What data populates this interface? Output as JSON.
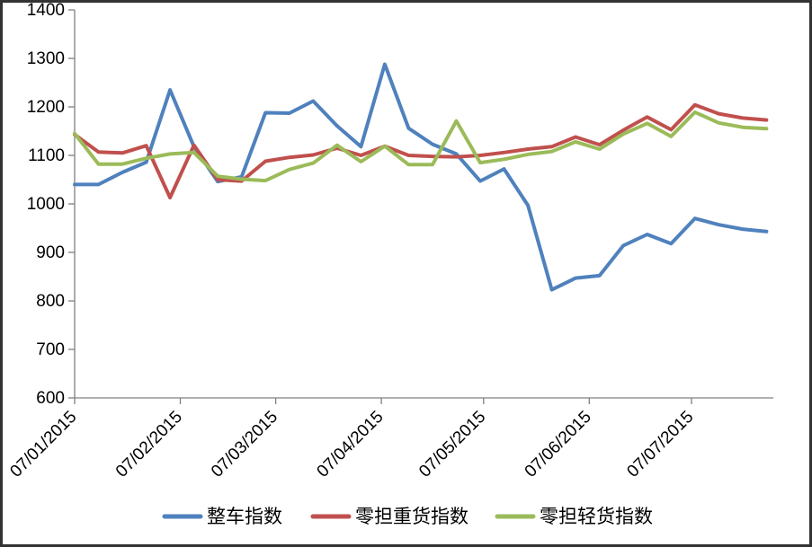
{
  "chart_data": {
    "type": "line",
    "title": "",
    "grid": false,
    "legend_position": "bottom",
    "colors": {
      "axis": "#808080",
      "text": "#000000",
      "background": "#ffffff"
    },
    "y_axis": {
      "min": 600,
      "max": 1400,
      "step": 100,
      "tick_labels": [
        "600",
        "700",
        "800",
        "900",
        "1000",
        "1100",
        "1200",
        "1300",
        "1400"
      ]
    },
    "x_axis": {
      "tick_labels": [
        "07/01/2015",
        "07/02/2015",
        "07/03/2015",
        "07/04/2015",
        "07/05/2015",
        "07/06/2015",
        "07/07/2015"
      ],
      "tick_days": [
        0,
        31,
        59,
        90,
        120,
        151,
        181
      ],
      "range_days": [
        0,
        205
      ]
    },
    "x_days": [
      0,
      7,
      14,
      21,
      28,
      35,
      42,
      49,
      56,
      63,
      70,
      77,
      84,
      91,
      98,
      105,
      112,
      119,
      126,
      133,
      140,
      147,
      154,
      161,
      168,
      175,
      182,
      189,
      196,
      203
    ],
    "series": [
      {
        "id": "full-truck-index",
        "name": "整车指数",
        "color": "#4F81BD",
        "values": [
          1040,
          1040,
          1065,
          1086,
          1235,
          1118,
          1046,
          1056,
          1188,
          1187,
          1212,
          1161,
          1118,
          1288,
          1156,
          1123,
          1103,
          1047,
          1072,
          997,
          823,
          847,
          852,
          914,
          937,
          918,
          970,
          957,
          948,
          943
        ]
      },
      {
        "id": "ltl-heavy-index",
        "name": "零担重货指数",
        "color": "#C0504D",
        "values": [
          1143,
          1107,
          1105,
          1120,
          1013,
          1121,
          1050,
          1047,
          1088,
          1096,
          1101,
          1115,
          1100,
          1119,
          1100,
          1098,
          1097,
          1100,
          1106,
          1113,
          1118,
          1138,
          1122,
          1152,
          1179,
          1153,
          1204,
          1186,
          1177,
          1173
        ]
      },
      {
        "id": "ltl-light-index",
        "name": "零担轻货指数",
        "color": "#9BBB59",
        "values": [
          1145,
          1082,
          1082,
          1094,
          1103,
          1106,
          1057,
          1051,
          1048,
          1071,
          1084,
          1121,
          1087,
          1119,
          1081,
          1081,
          1171,
          1085,
          1092,
          1102,
          1108,
          1128,
          1113,
          1144,
          1166,
          1139,
          1189,
          1167,
          1158,
          1155
        ]
      }
    ]
  }
}
